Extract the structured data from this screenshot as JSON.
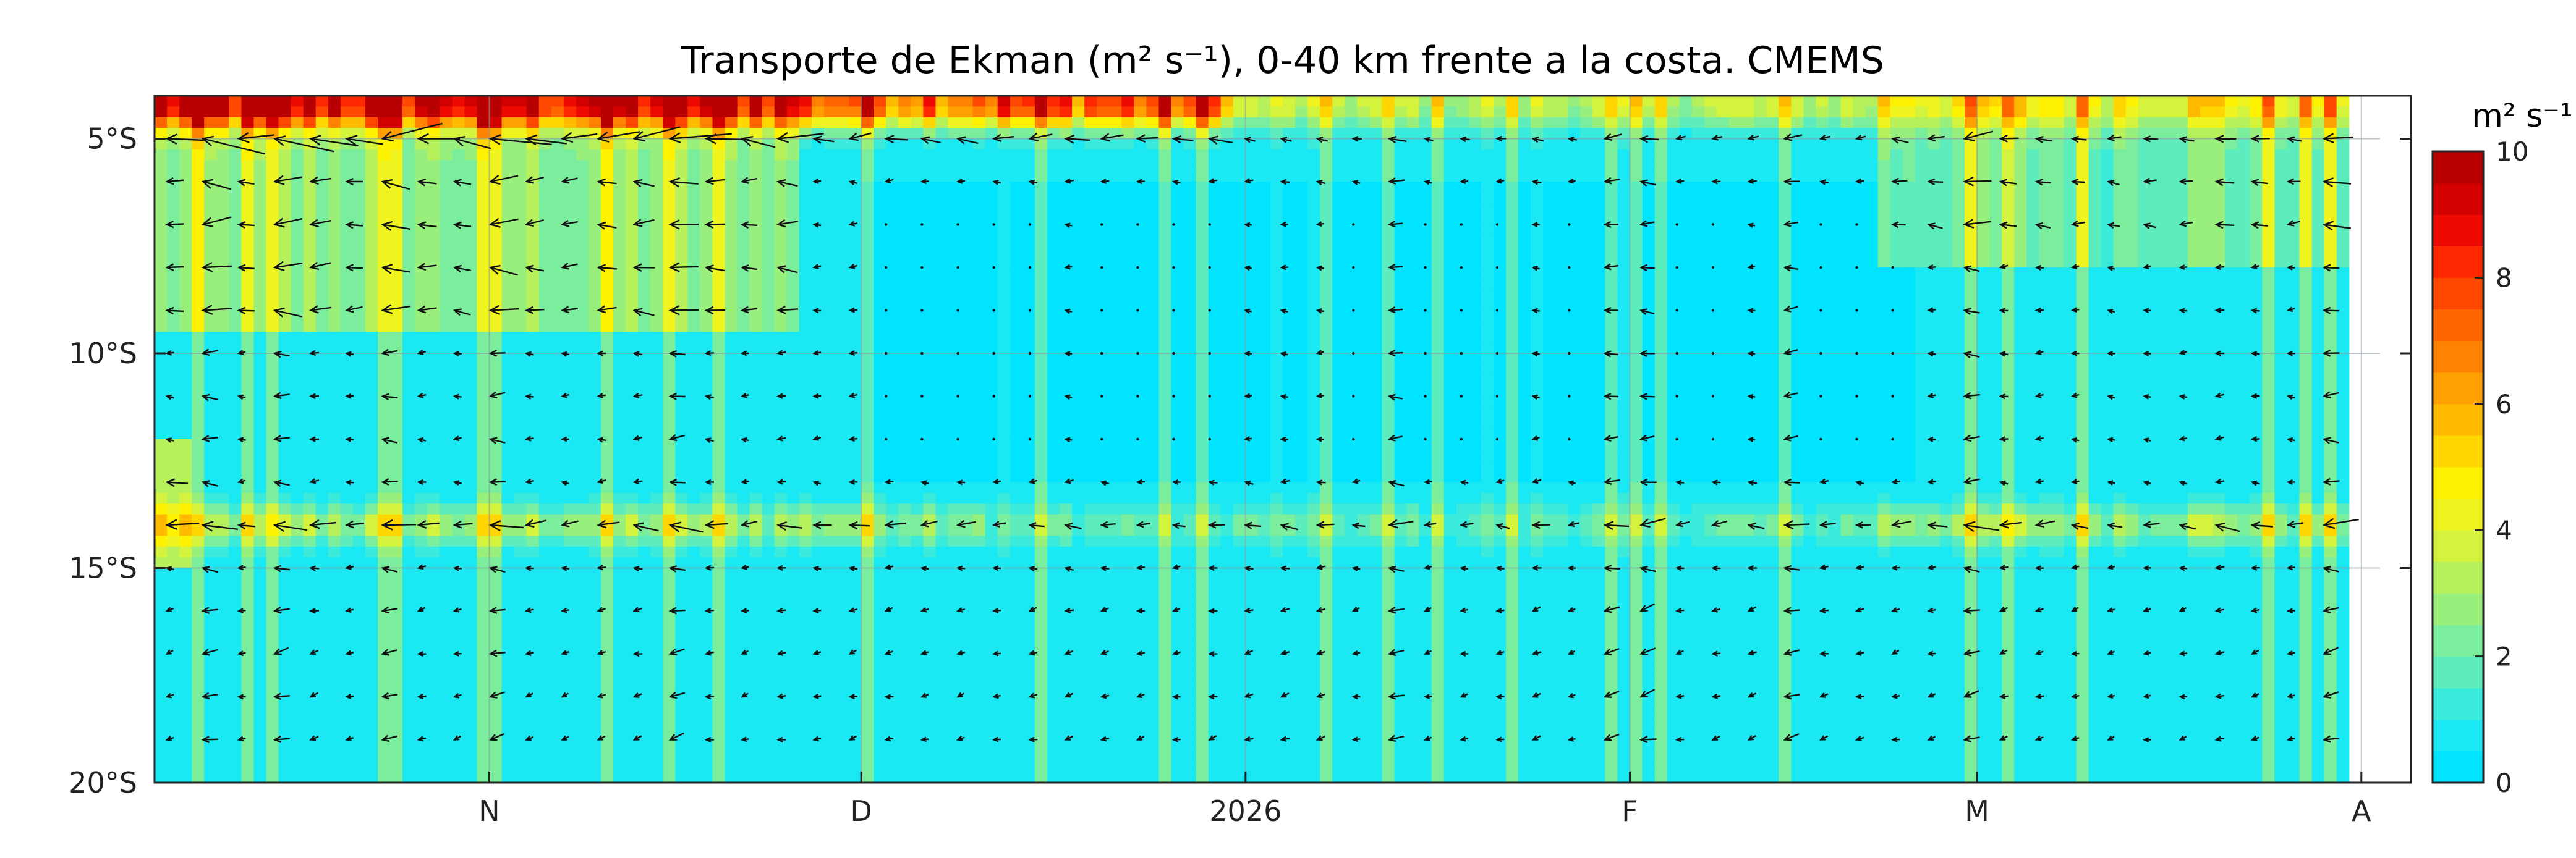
{
  "chart_data": {
    "type": "heatmap",
    "title": "Transporte de Ekman (m² s⁻¹), 0-40 km frente a la costa. CMEMS",
    "colorbar": {
      "label": "m² s⁻¹",
      "range": [
        0,
        10
      ],
      "ticks": [
        "0",
        "2",
        "4",
        "6",
        "8",
        "10"
      ],
      "colors": [
        "#00e4ff",
        "#1ae8f2",
        "#3aeada",
        "#5cecbd",
        "#7aee9d",
        "#98ef7c",
        "#b6f15c",
        "#d3f33d",
        "#eff31e",
        "#fff200",
        "#ffd600",
        "#ffbb00",
        "#ff9f00",
        "#ff8300",
        "#ff6600",
        "#ff4800",
        "#ff2800",
        "#ee0a00",
        "#d30000",
        "#b80000"
      ]
    },
    "x_axis": {
      "ticks": [
        {
          "label": "N",
          "day": 0
        },
        {
          "label": "D",
          "day": 30
        },
        {
          "label": "2026",
          "day": 61
        },
        {
          "label": "F",
          "day": 92
        },
        {
          "label": "M",
          "day": 120
        },
        {
          "label": "A",
          "day": 151
        }
      ],
      "range_days": [
        -27,
        155
      ]
    },
    "y_axis": {
      "ticks": [
        "5°S",
        "10°S",
        "15°S",
        "20°S"
      ],
      "tick_values": [
        5,
        10,
        15,
        20
      ],
      "range": [
        4,
        20
      ]
    },
    "grid": true
  }
}
